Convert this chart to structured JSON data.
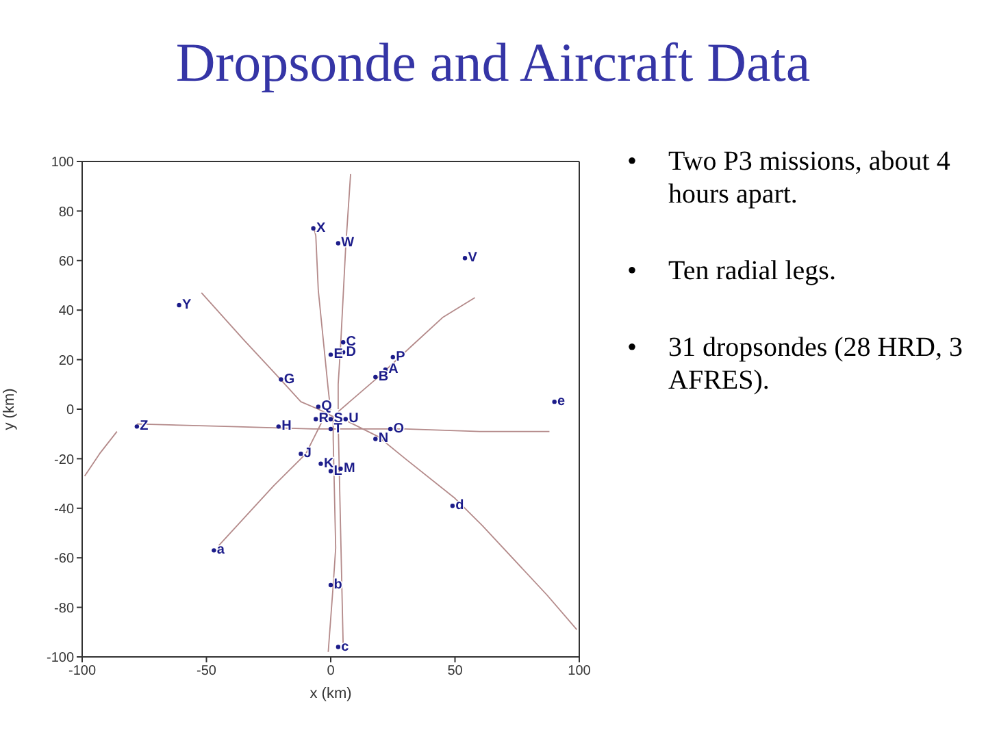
{
  "chart_data": {
    "type": "line",
    "title": "Dropsonde and Aircraft Data",
    "xlabel": "x (km)",
    "ylabel": "y (km)",
    "xlim": [
      -100,
      100
    ],
    "xticks": [
      -100,
      -50,
      0,
      50,
      100
    ],
    "ylim": [
      -100,
      100
    ],
    "yticks": [
      -100,
      -80,
      -60,
      -40,
      -20,
      0,
      20,
      40,
      60,
      80,
      100
    ],
    "marker": "none",
    "series": [
      {
        "color": "#b48a8a",
        "x": [
          -52,
          -35,
          -22,
          -12,
          -5,
          1
        ],
        "values": [
          47,
          28,
          14,
          3,
          0,
          -3
        ]
      },
      {
        "color": "#b48a8a",
        "x": [
          -7,
          -6,
          -5,
          -1,
          0
        ],
        "values": [
          74,
          70,
          48,
          8,
          -1
        ]
      },
      {
        "color": "#b48a8a",
        "x": [
          8,
          6,
          4,
          3,
          3
        ],
        "values": [
          95,
          65,
          26,
          10,
          0
        ]
      },
      {
        "color": "#b48a8a",
        "x": [
          1,
          1,
          2,
          1,
          -1
        ],
        "values": [
          -3,
          -12,
          -56,
          -71,
          -98
        ]
      },
      {
        "color": "#b48a8a",
        "x": [
          3,
          4,
          5
        ],
        "values": [
          -5,
          -50,
          -95
        ]
      },
      {
        "color": "#b48a8a",
        "x": [
          3,
          18,
          32,
          45,
          58
        ],
        "values": [
          -1,
          12,
          25,
          37,
          45
        ]
      },
      {
        "color": "#b48a8a",
        "x": [
          -78,
          -40,
          -7,
          30,
          60,
          88
        ],
        "values": [
          -6,
          -7,
          -8,
          -8,
          -9,
          -9
        ]
      },
      {
        "color": "#b48a8a",
        "x": [
          7,
          19,
          30,
          50,
          61,
          87,
          99
        ],
        "values": [
          -5,
          -11,
          -20,
          -36,
          -47,
          -75,
          -89
        ]
      },
      {
        "color": "#b48a8a",
        "x": [
          -45,
          -23,
          -10,
          -3
        ],
        "values": [
          -55,
          -31,
          -18,
          -4
        ]
      },
      {
        "color": "#b48a8a",
        "x": [
          -99,
          -93,
          -86
        ],
        "values": [
          -27,
          -18,
          -9
        ]
      },
      {
        "type": "scatter",
        "color": "#1c1c8a",
        "marker": "circle",
        "x": [
          22,
          18,
          5,
          5,
          0,
          -20,
          -21,
          -12,
          -4,
          0,
          4,
          18,
          24,
          25,
          -5,
          -6,
          0,
          0,
          6,
          54,
          3,
          -7,
          -61,
          -78,
          -47,
          0,
          3,
          49,
          90
        ],
        "values": [
          16,
          13,
          27,
          23,
          22,
          12,
          -7,
          -18,
          -22,
          -25,
          -24,
          -12,
          -8,
          21,
          1,
          -4,
          -4,
          -8,
          -4,
          61,
          67,
          73,
          42,
          -7,
          -57,
          -71,
          -96,
          -39,
          3
        ],
        "value_labels": [
          "A",
          "B",
          "C",
          "D",
          "E",
          "G",
          "H",
          "J",
          "K",
          "L",
          "M",
          "N",
          "O",
          "P",
          "Q",
          "R",
          "S",
          "T",
          "U",
          "V",
          "W",
          "X",
          "Y",
          "Z",
          "a",
          "b",
          "c",
          "d",
          "e"
        ]
      }
    ],
    "annotations": [
      "• Two P3 missions, about 4 hours apart.",
      "• Ten radial legs.",
      "• 31 dropsondes (28 HRD, 3 AFRES)."
    ]
  }
}
